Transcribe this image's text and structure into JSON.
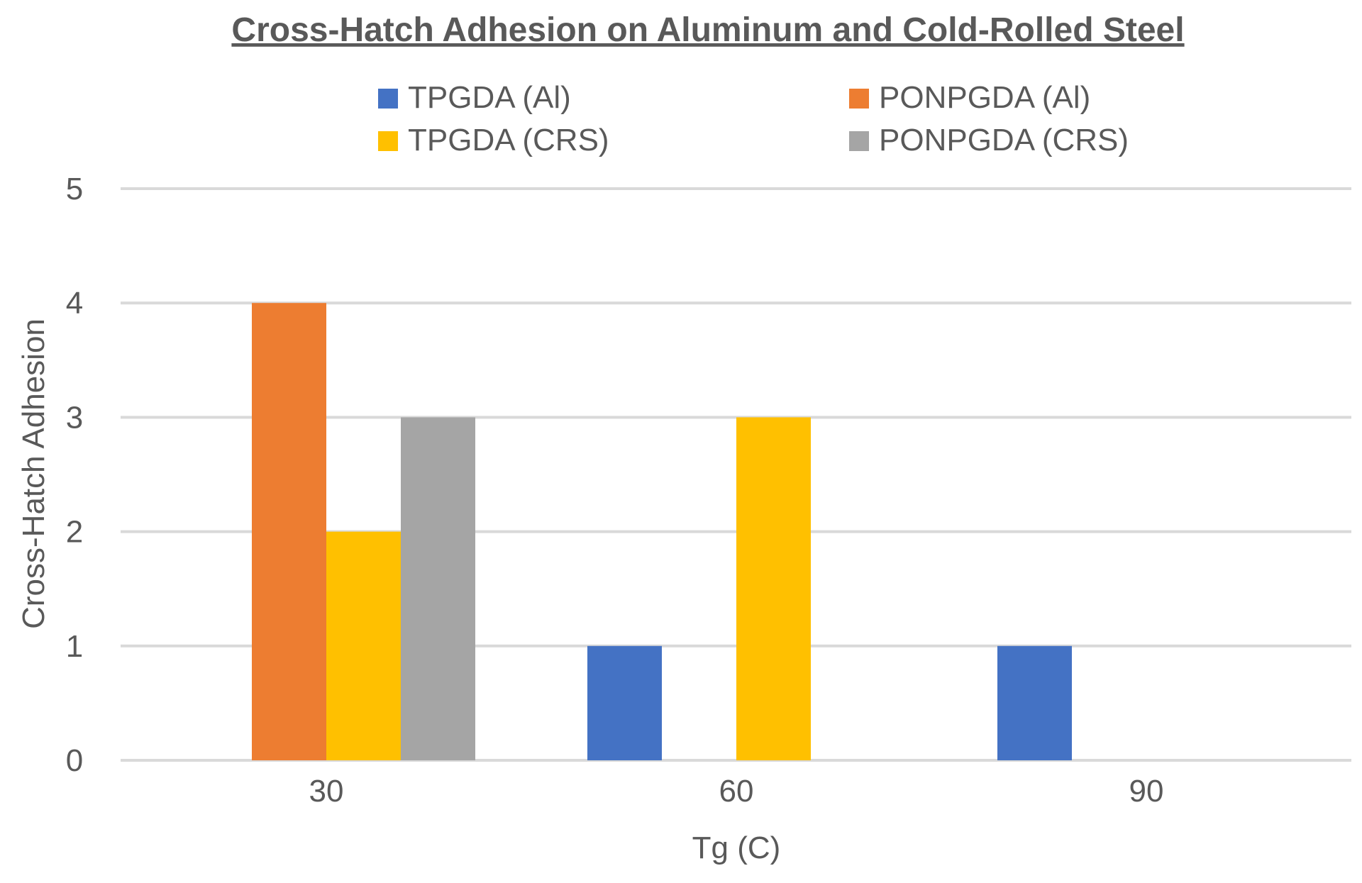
{
  "chart_data": {
    "type": "bar",
    "title": "Cross-Hatch Adhesion on Aluminum and Cold-Rolled Steel",
    "xlabel": "Tg (C)",
    "ylabel": "Cross-Hatch Adhesion",
    "categories": [
      "30",
      "60",
      "90"
    ],
    "ylim": [
      0,
      5
    ],
    "yticks": [
      "0",
      "1",
      "2",
      "3",
      "4",
      "5"
    ],
    "grid": true,
    "legend_position": "top",
    "series": [
      {
        "name": "TPGDA (Al)",
        "color": "#4472C4",
        "values": [
          0,
          1,
          1
        ]
      },
      {
        "name": "PONPGDA (Al)",
        "color": "#ED7D31",
        "values": [
          4,
          0,
          0
        ]
      },
      {
        "name": "TPGDA (CRS)",
        "color": "#FFC000",
        "values": [
          2,
          3,
          0
        ]
      },
      {
        "name": "PONPGDA (CRS)",
        "color": "#A5A5A5",
        "values": [
          3,
          0,
          0
        ]
      }
    ]
  }
}
